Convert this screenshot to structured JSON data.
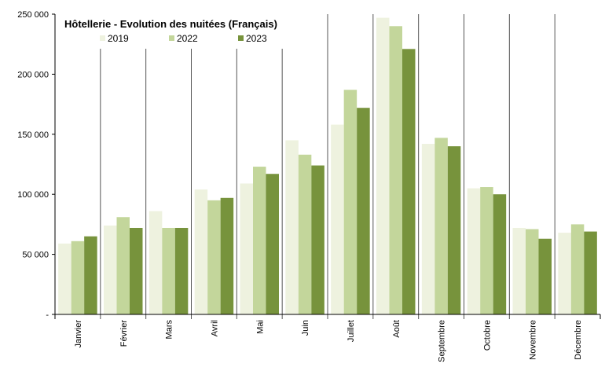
{
  "chart_data": {
    "type": "bar",
    "title": "Hôtellerie - Evolution des nuitées (Français)",
    "categories": [
      "Janvier",
      "Février",
      "Mars",
      "Avril",
      "Mai",
      "Juin",
      "Juillet",
      "Août",
      "Septembre",
      "Octobre",
      "Novembre",
      "Décembre"
    ],
    "series": [
      {
        "name": "2019",
        "color": "#eef2df",
        "values": [
          59000,
          74000,
          86000,
          104000,
          109000,
          145000,
          158000,
          247000,
          142000,
          105000,
          72000,
          68000
        ]
      },
      {
        "name": "2022",
        "color": "#c3d69b",
        "values": [
          61000,
          81000,
          72000,
          95000,
          123000,
          133000,
          187000,
          240000,
          147000,
          106000,
          71000,
          75000
        ]
      },
      {
        "name": "2023",
        "color": "#77933c",
        "values": [
          65000,
          72000,
          72000,
          97000,
          117000,
          124000,
          172000,
          221000,
          140000,
          100000,
          63000,
          69000
        ]
      }
    ],
    "ylim": [
      0,
      250000
    ],
    "yticks": [
      {
        "value": 0,
        "label": "-"
      },
      {
        "value": 50000,
        "label": "50 000"
      },
      {
        "value": 100000,
        "label": "100 000"
      },
      {
        "value": 150000,
        "label": "150 000"
      },
      {
        "value": 200000,
        "label": "200 000"
      },
      {
        "value": 250000,
        "label": "250 000"
      }
    ],
    "xlabel": "",
    "ylabel": "",
    "grid": "vertical category separators",
    "legend": "top-left"
  }
}
